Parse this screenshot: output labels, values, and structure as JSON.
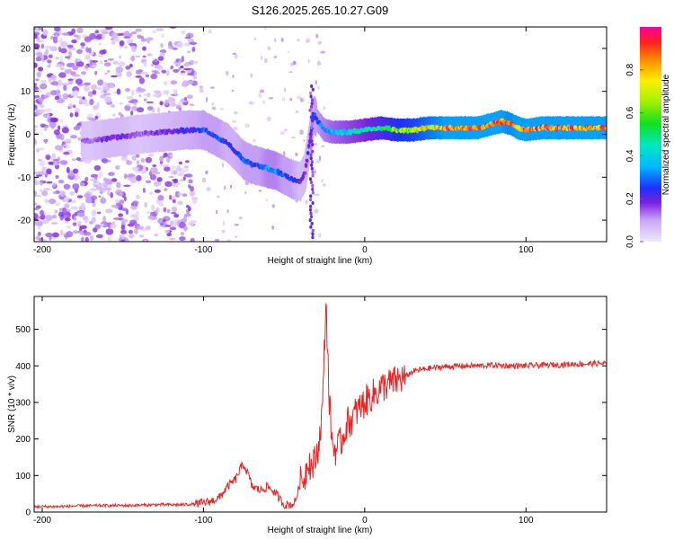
{
  "chart_data": [
    {
      "type": "heatmap",
      "title": "S126.2025.265.10.27.G09",
      "xlabel": "Height of straight line (km)",
      "ylabel": "Frequency (Hz)",
      "xlim": [
        -205,
        150
      ],
      "ylim": [
        -25,
        25
      ],
      "xticks": [
        -200,
        -100,
        0,
        100
      ],
      "yticks": [
        -20,
        -10,
        0,
        10,
        20
      ],
      "colorbar": {
        "label": "Normalized spectral amplitude",
        "range": [
          0,
          1
        ],
        "ticks": [
          0.0,
          0.2,
          0.4,
          0.6,
          0.8
        ]
      },
      "ridge": {
        "description": "dominant frequency track",
        "x": [
          -170,
          -160,
          -150,
          -140,
          -125,
          -110,
          -100,
          -95,
          -90,
          -85,
          -80,
          -75,
          -70,
          -65,
          -60,
          -55,
          -50,
          -45,
          -40,
          -37,
          -35,
          -33,
          -32,
          -31,
          -30,
          -25,
          -20,
          -10,
          0,
          10,
          20,
          30,
          40,
          50,
          60,
          70,
          80,
          85,
          90,
          95,
          100,
          110,
          120,
          130,
          140,
          150
        ],
        "y": [
          -1.5,
          -1.0,
          -0.5,
          0.0,
          0.5,
          1.0,
          1.0,
          0.0,
          -1.0,
          -2.0,
          -4.0,
          -6.0,
          -7.0,
          -7.5,
          -8.0,
          -8.5,
          -9.5,
          -10.5,
          -11.0,
          -9.0,
          -4.0,
          1.0,
          4.0,
          4.5,
          3.5,
          1.0,
          0.5,
          0.5,
          1.0,
          1.5,
          1.0,
          1.0,
          1.5,
          1.5,
          1.5,
          1.5,
          2.5,
          3.0,
          2.5,
          1.5,
          1.0,
          1.5,
          1.5,
          1.5,
          1.5,
          1.5
        ],
        "amplitude": [
          0.15,
          0.2,
          0.2,
          0.15,
          0.2,
          0.25,
          0.3,
          0.3,
          0.3,
          0.25,
          0.25,
          0.3,
          0.3,
          0.3,
          0.35,
          0.35,
          0.3,
          0.3,
          0.2,
          0.2,
          0.25,
          0.25,
          0.3,
          0.3,
          0.3,
          0.35,
          0.4,
          0.45,
          0.5,
          0.6,
          0.7,
          0.75,
          0.85,
          0.95,
          0.95,
          0.95,
          0.95,
          0.95,
          0.9,
          0.95,
          0.95,
          0.95,
          0.95,
          0.95,
          0.95,
          0.95
        ]
      }
    },
    {
      "type": "line",
      "title": "",
      "xlabel": "Height of straight line (km)",
      "ylabel": "SNR (10 * v/v)",
      "xlim": [
        -205,
        150
      ],
      "ylim": [
        0,
        590
      ],
      "xticks": [
        -200,
        -100,
        0,
        100
      ],
      "yticks": [
        0,
        100,
        200,
        300,
        400,
        500
      ],
      "color": "#ee2222",
      "series": [
        {
          "name": "SNR",
          "x": [
            -205,
            -190,
            -175,
            -160,
            -145,
            -130,
            -115,
            -105,
            -100,
            -95,
            -90,
            -85,
            -80,
            -77,
            -75,
            -72,
            -70,
            -65,
            -62,
            -60,
            -55,
            -50,
            -45,
            -43,
            -40,
            -37,
            -35,
            -33,
            -30,
            -28,
            -26,
            -25,
            -24,
            -23,
            -22,
            -21,
            -20,
            -18,
            -16,
            -14,
            -12,
            -10,
            -8,
            -6,
            -4,
            -2,
            0,
            2,
            5,
            8,
            10,
            12,
            15,
            18,
            20,
            25,
            30,
            35,
            40,
            45,
            50,
            60,
            70,
            80,
            90,
            100,
            110,
            120,
            130,
            140,
            150
          ],
          "y": [
            15,
            15,
            17,
            18,
            18,
            20,
            20,
            22,
            25,
            30,
            40,
            70,
            90,
            120,
            130,
            100,
            70,
            60,
            65,
            70,
            50,
            20,
            20,
            30,
            80,
            100,
            150,
            120,
            150,
            200,
            300,
            450,
            580,
            450,
            300,
            250,
            180,
            170,
            180,
            200,
            230,
            250,
            250,
            270,
            280,
            290,
            300,
            310,
            320,
            330,
            340,
            345,
            350,
            355,
            360,
            370,
            385,
            390,
            393,
            396,
            398,
            400,
            400,
            402,
            400,
            400,
            402,
            403,
            405,
            406,
            407
          ]
        }
      ]
    }
  ]
}
